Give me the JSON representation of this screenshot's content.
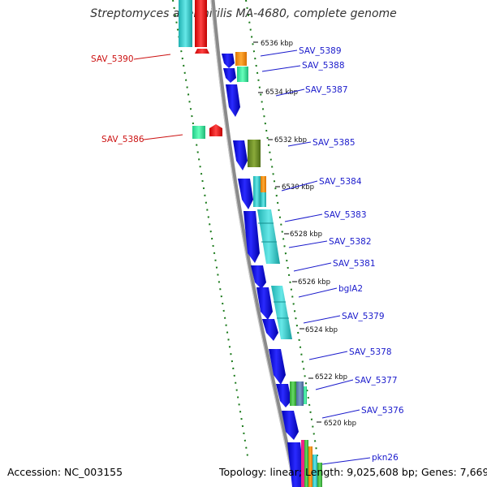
{
  "title": "Streptomyces avermitilis MA-4680, complete genome",
  "footer": {
    "accession": "Accession: NC_003155",
    "topology": "Topology: linear; Length: 9,025,608 bp; Genes: 7,669"
  },
  "ruler": {
    "unit": "kbp",
    "ticks": [
      {
        "label": "6536 kbp"
      },
      {
        "label": "6534 kbp"
      },
      {
        "label": "6532 kbp"
      },
      {
        "label": "6530 kbp"
      },
      {
        "label": "6528 kbp"
      },
      {
        "label": "6526 kbp"
      },
      {
        "label": "6524 kbp"
      },
      {
        "label": "6522 kbp"
      },
      {
        "label": "6520 kbp"
      }
    ]
  },
  "genes_right": [
    {
      "label": "SAV_5389"
    },
    {
      "label": "SAV_5388"
    },
    {
      "label": "SAV_5387"
    },
    {
      "label": "SAV_5385"
    },
    {
      "label": "SAV_5384"
    },
    {
      "label": "SAV_5383"
    },
    {
      "label": "SAV_5382"
    },
    {
      "label": "SAV_5381"
    },
    {
      "label": "bglA2"
    },
    {
      "label": "SAV_5379"
    },
    {
      "label": "SAV_5378"
    },
    {
      "label": "SAV_5377"
    },
    {
      "label": "SAV_5376"
    },
    {
      "label": "pkn26"
    }
  ],
  "genes_left": [
    {
      "label": "SAV_5390"
    },
    {
      "label": "SAV_5386"
    }
  ],
  "colors": {
    "forward_label": "#1a1acc",
    "reverse_label": "#cc1111",
    "cds_blue": "#0a0ae6",
    "cyan": "#33cccc",
    "teal_green": "#33ee99",
    "olive": "#6b8e23",
    "orange": "#ff8c00",
    "red": "#ee1111",
    "backbone": "#888888",
    "dots": "#1a7a1a"
  }
}
